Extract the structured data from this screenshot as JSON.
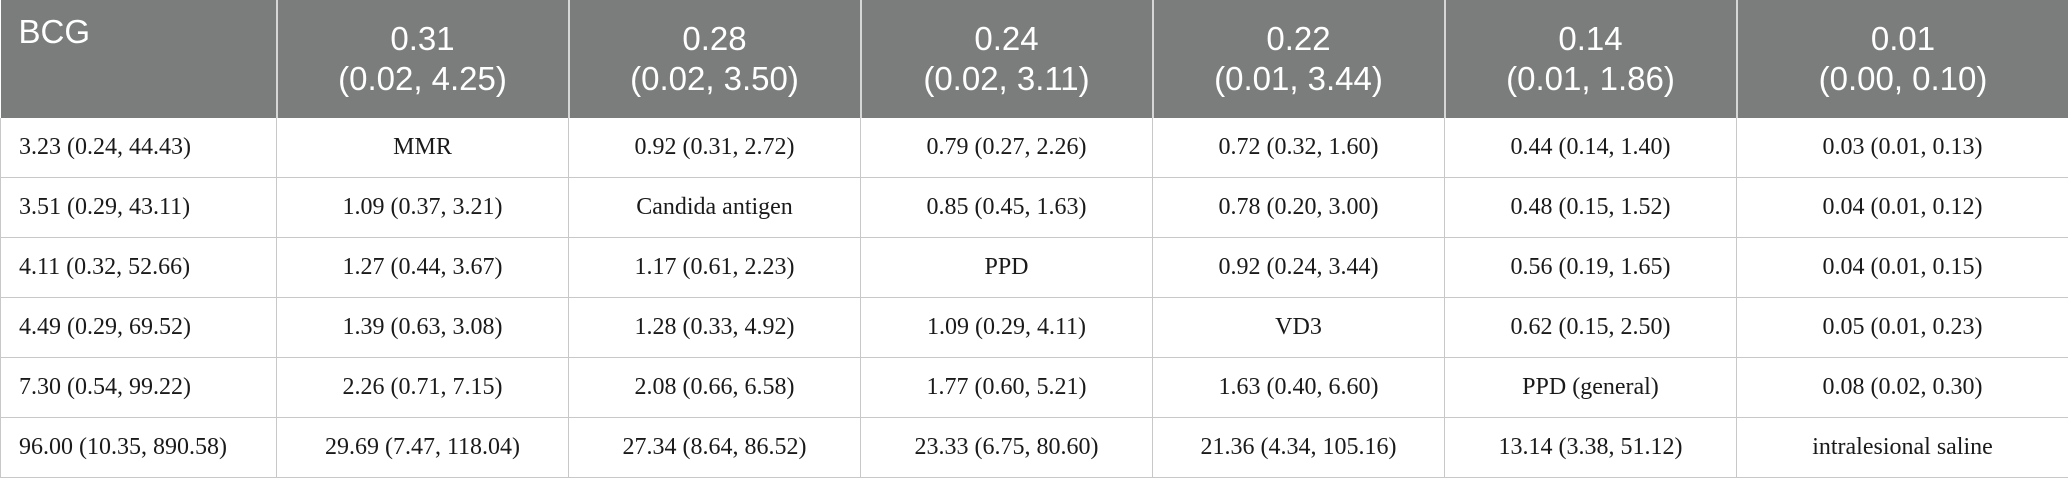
{
  "table": {
    "header": [
      {
        "value": "BCG",
        "ci": ""
      },
      {
        "value": "0.31",
        "ci": "(0.02, 4.25)"
      },
      {
        "value": "0.28",
        "ci": "(0.02, 3.50)"
      },
      {
        "value": "0.24",
        "ci": "(0.02, 3.11)"
      },
      {
        "value": "0.22",
        "ci": "(0.01, 3.44)"
      },
      {
        "value": "0.14",
        "ci": "(0.01, 1.86)"
      },
      {
        "value": "0.01",
        "ci": "(0.00, 0.10)"
      }
    ],
    "rows": [
      [
        "3.23 (0.24, 44.43)",
        "MMR",
        "0.92 (0.31, 2.72)",
        "0.79 (0.27, 2.26)",
        "0.72 (0.32, 1.60)",
        "0.44 (0.14, 1.40)",
        "0.03 (0.01, 0.13)"
      ],
      [
        "3.51 (0.29, 43.11)",
        "1.09 (0.37, 3.21)",
        "Candida antigen",
        "0.85 (0.45, 1.63)",
        "0.78 (0.20, 3.00)",
        "0.48 (0.15, 1.52)",
        "0.04 (0.01, 0.12)"
      ],
      [
        "4.11 (0.32, 52.66)",
        "1.27 (0.44, 3.67)",
        "1.17 (0.61, 2.23)",
        "PPD",
        "0.92 (0.24, 3.44)",
        "0.56 (0.19, 1.65)",
        "0.04 (0.01, 0.15)"
      ],
      [
        "4.49 (0.29, 69.52)",
        "1.39 (0.63, 3.08)",
        "1.28 (0.33, 4.92)",
        "1.09 (0.29, 4.11)",
        "VD3",
        "0.62 (0.15, 2.50)",
        "0.05 (0.01, 0.23)"
      ],
      [
        "7.30 (0.54, 99.22)",
        "2.26 (0.71, 7.15)",
        "2.08 (0.66, 6.58)",
        "1.77 (0.60, 5.21)",
        "1.63 (0.40, 6.60)",
        "PPD (general)",
        "0.08 (0.02, 0.30)"
      ],
      [
        "96.00 (10.35, 890.58)",
        "29.69 (7.47, 118.04)",
        "27.34 (8.64, 86.52)",
        "23.33 (6.75, 80.60)",
        "21.36 (4.34, 105.16)",
        "13.14 (3.38, 51.12)",
        "intralesional saline"
      ]
    ]
  }
}
